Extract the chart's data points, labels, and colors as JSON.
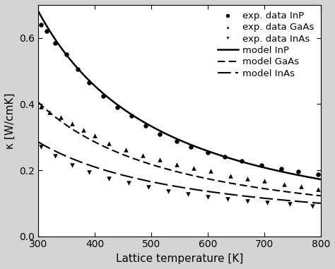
{
  "xlabel": "Lattice temperature [K]",
  "ylabel": "κ [W/cmK]",
  "xlim": [
    300,
    800
  ],
  "ylim": [
    0.0,
    0.7
  ],
  "yticks": [
    0.0,
    0.2,
    0.4,
    0.6
  ],
  "xticks": [
    300,
    400,
    500,
    600,
    700,
    800
  ],
  "model_InP": {
    "k300": 0.68,
    "exponent": 1.4
  },
  "model_GaAs": {
    "k300": 0.405,
    "exponent": 1.22
  },
  "model_InAs": {
    "k300": 0.285,
    "exponent": 1.07
  },
  "exp_InP_T": [
    305,
    315,
    330,
    350,
    370,
    390,
    415,
    440,
    465,
    490,
    515,
    545,
    570,
    600,
    630,
    660,
    695,
    730,
    760,
    795
  ],
  "exp_InP_k": [
    0.64,
    0.62,
    0.585,
    0.55,
    0.505,
    0.465,
    0.425,
    0.39,
    0.365,
    0.335,
    0.31,
    0.288,
    0.27,
    0.253,
    0.24,
    0.228,
    0.215,
    0.205,
    0.196,
    0.188
  ],
  "exp_GaAs_T": [
    305,
    320,
    340,
    360,
    380,
    400,
    425,
    455,
    485,
    515,
    545,
    575,
    605,
    640,
    670,
    700,
    735,
    765,
    795
  ],
  "exp_GaAs_k": [
    0.392,
    0.376,
    0.36,
    0.342,
    0.322,
    0.305,
    0.282,
    0.262,
    0.245,
    0.232,
    0.218,
    0.207,
    0.197,
    0.184,
    0.175,
    0.167,
    0.157,
    0.15,
    0.143
  ],
  "exp_InAs_T": [
    305,
    330,
    360,
    390,
    425,
    460,
    495,
    530,
    565,
    600,
    635,
    670,
    705,
    745,
    785
  ],
  "exp_InAs_k": [
    0.27,
    0.242,
    0.215,
    0.194,
    0.175,
    0.161,
    0.148,
    0.137,
    0.127,
    0.119,
    0.112,
    0.107,
    0.101,
    0.097,
    0.092
  ],
  "linewidth_solid": 1.8,
  "linewidth_dashed": 1.5,
  "marker_size": 22,
  "legend_fontsize": 9.5,
  "tick_fontsize": 10,
  "label_fontsize": 11,
  "bg_color": "#d4d4d4",
  "plot_bg_color": "#ffffff"
}
